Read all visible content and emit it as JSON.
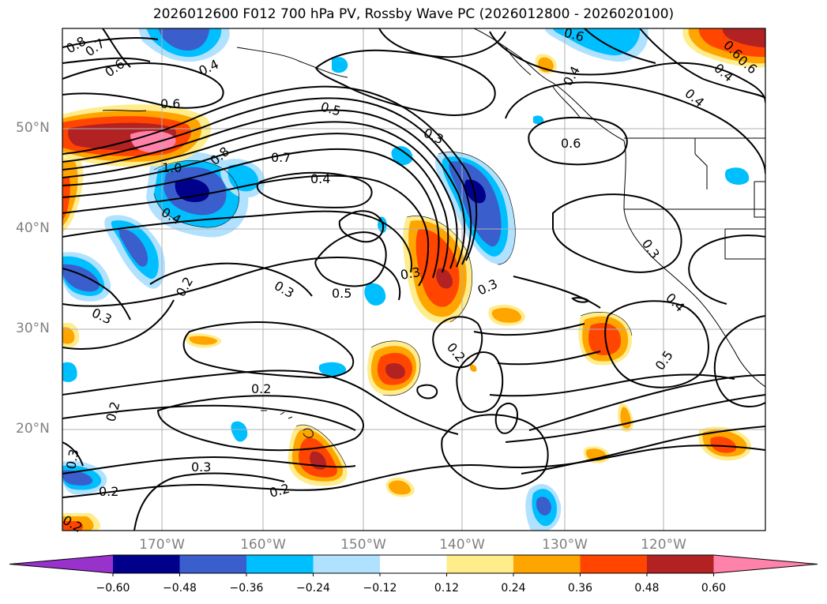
{
  "title": "2026012600 F012 700 hPa PV, Rossby Wave PC (2026012800 - 2026020100)",
  "lat_labels": [
    "50°N",
    "40°N",
    "30°N",
    "20°N"
  ],
  "lon_labels": [
    "170°W",
    "160°W",
    "150°W",
    "140°W",
    "130°W",
    "120°W"
  ],
  "contour_labels": [
    "0.8",
    "0.7",
    "0.6",
    "0.4",
    "0.6",
    "0.5",
    "0.3",
    "1.0",
    "0.8",
    "0.7",
    "0.4",
    "0.4",
    "0.3",
    "0.2",
    "0.3",
    "0.5",
    "0.3",
    "0.3",
    "0.2",
    "0.2",
    "0.2",
    "0.3",
    "0.2",
    "0.2",
    "0.3",
    "0.2",
    "0.6",
    "0.6",
    "0.4",
    "0.4",
    "0.6",
    "0.3",
    "0.4",
    "0.5",
    "0.6",
    "0.4"
  ],
  "colorbar": {
    "ticks": [
      "−0.60",
      "−0.48",
      "−0.36",
      "−0.24",
      "−0.12",
      "0.12",
      "0.24",
      "0.36",
      "0.48",
      "0.60"
    ],
    "colors": [
      "#9932cc",
      "#00008b",
      "#3a5fcd",
      "#00bfff",
      "#b0e2ff",
      "#ffffff",
      "#ffec8b",
      "#ffa500",
      "#ff4500",
      "#b22222",
      "#ff82ab"
    ]
  }
}
